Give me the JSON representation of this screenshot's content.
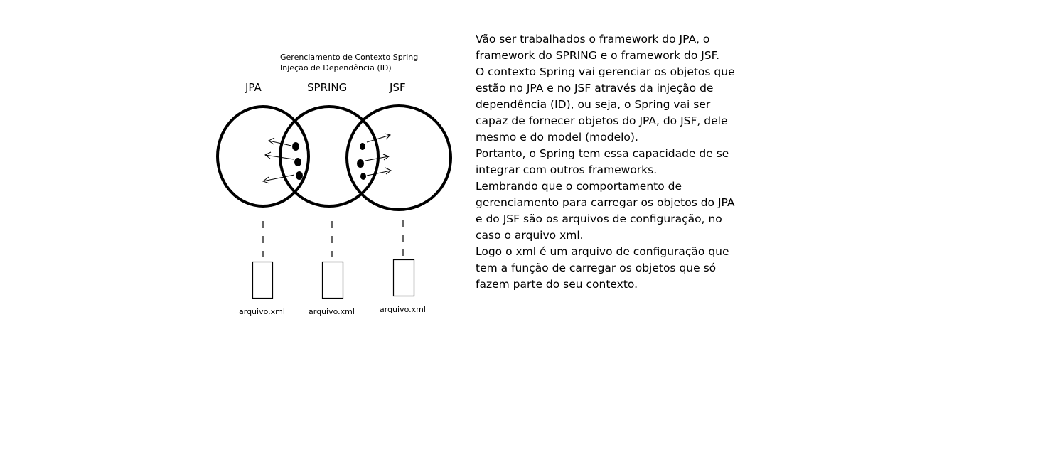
{
  "diagram": {
    "header_line1": "Gerenciamento de Contexto Spring",
    "header_line2": "Injeção de Dependência (ID)",
    "frameworks": [
      "JPA",
      "SPRING",
      "JSF"
    ],
    "files": [
      "arquivo.xml",
      "arquivo.xml",
      "arquivo.xml"
    ]
  },
  "explanation": {
    "lines": [
      "Vão ser trabalhados o framework do JPA, o",
      "framework do SPRING e o framework do JSF.",
      "O contexto Spring vai gerenciar os objetos que",
      "estão no JPA e no JSF através da injeção de",
      "dependência (ID), ou seja, o Spring vai ser",
      "capaz de fornecer objetos do JPA, do JSF, dele",
      "mesmo e do model (modelo).",
      "Portanto, o Spring tem essa capacidade de se",
      "integrar com outros frameworks.",
      "Lembrando que o comportamento de",
      "gerenciamento para carregar os objetos do JPA",
      "e do JSF são os arquivos de configuração, no",
      "caso o arquivo xml.",
      "Logo o xml é um arquivo de configuração que",
      "tem a função de carregar os objetos que só",
      "fazem parte do seu contexto."
    ]
  }
}
